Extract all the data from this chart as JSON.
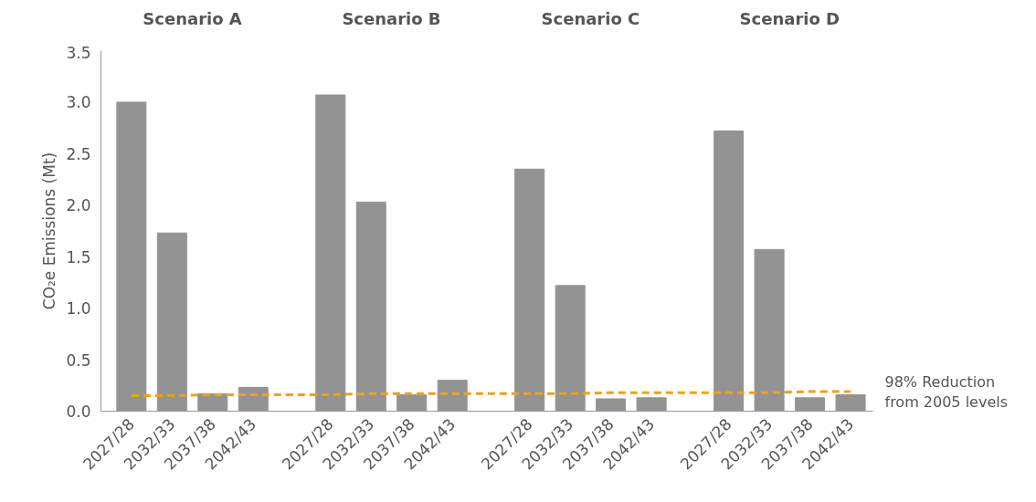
{
  "chart_data": {
    "type": "bar",
    "ylabel": "CO₂e Emissions (Mt)",
    "categories": [
      "2027/28",
      "2032/33",
      "2037/38",
      "2042/43",
      "2027/28",
      "2032/33",
      "2037/38",
      "2042/43",
      "2027/28",
      "2032/33",
      "2037/38",
      "2042/43",
      "2027/28",
      "2032/33",
      "2037/38",
      "2042/43"
    ],
    "series": [
      {
        "color": "#939393",
        "values": [
          3.0,
          1.73,
          0.17,
          0.23,
          3.07,
          2.03,
          0.16,
          0.3,
          2.35,
          1.22,
          0.12,
          0.13,
          2.72,
          1.57,
          0.13,
          0.16
        ]
      },
      {
        "type": "line",
        "color": "#f0a020",
        "line_style": "dashed",
        "values": [
          0.15,
          0.15,
          0.16,
          0.16,
          0.16,
          0.17,
          0.17,
          0.17,
          0.17,
          0.17,
          0.18,
          0.18,
          0.18,
          0.18,
          0.19,
          0.19
        ]
      }
    ],
    "annotations": [
      "Scenario A",
      "Scenario B",
      "Scenario C",
      "Scenario D",
      "98% Reduction\nfrom 2005 levels"
    ],
    "ylim": [
      0,
      3.5
    ],
    "yticks": [
      {
        "value": 0,
        "label": "0.0"
      },
      {
        "value": 0.5,
        "label": "0.5"
      },
      {
        "value": 1,
        "label": "1.0"
      },
      {
        "value": 1.5,
        "label": "1.5"
      },
      {
        "value": 2,
        "label": "2.0"
      },
      {
        "value": 2.5,
        "label": "2.5"
      },
      {
        "value": 3,
        "label": "3.0"
      },
      {
        "value": 3.5,
        "label": "3.5"
      }
    ],
    "grid": false
  }
}
